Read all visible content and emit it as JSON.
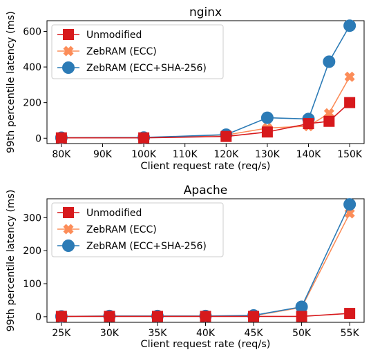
{
  "chart_data": [
    {
      "type": "line",
      "title": "nginx",
      "xlabel": "Client request rate (req/s)",
      "ylabel": "99th percentile latency (ms)",
      "x_ticks": [
        "80K",
        "90K",
        "100K",
        "110K",
        "120K",
        "130K",
        "140K",
        "150K"
      ],
      "x_tick_values": [
        80,
        90,
        100,
        110,
        120,
        130,
        140,
        150
      ],
      "xlim": [
        76.5,
        153.5
      ],
      "y_ticks": [
        0,
        200,
        400,
        600
      ],
      "ylim": [
        -30,
        660
      ],
      "legend_position": "upper-left",
      "series": [
        {
          "name": "Unmodified",
          "color": "#d7191c",
          "marker": "square",
          "points": [
            [
              80,
              2
            ],
            [
              100,
              2
            ],
            [
              120,
              10
            ],
            [
              130,
              35
            ],
            [
              140,
              82
            ],
            [
              145,
              95
            ],
            [
              150,
              200
            ]
          ]
        },
        {
          "name": "ZebRAM (ECC)",
          "color": "#fc8d59",
          "marker": "x",
          "points": [
            [
              80,
              3
            ],
            [
              100,
              3
            ],
            [
              120,
              18
            ],
            [
              130,
              57
            ],
            [
              140,
              68
            ],
            [
              145,
              140
            ],
            [
              150,
              345
            ]
          ]
        },
        {
          "name": "ZebRAM (ECC+SHA-256)",
          "color": "#2c7bb6",
          "marker": "circle",
          "points": [
            [
              80,
              3
            ],
            [
              100,
              4
            ],
            [
              120,
              20
            ],
            [
              130,
              115
            ],
            [
              140,
              108
            ],
            [
              145,
              430
            ],
            [
              150,
              632
            ]
          ]
        }
      ]
    },
    {
      "type": "line",
      "title": "Apache",
      "xlabel": "Client request rate (req/s)",
      "ylabel": "99th percentile latency (ms)",
      "x_ticks": [
        "25K",
        "30K",
        "35K",
        "40K",
        "45K",
        "50K",
        "55K"
      ],
      "x_tick_values": [
        25,
        30,
        35,
        40,
        45,
        50,
        55
      ],
      "xlim": [
        23.5,
        56.5
      ],
      "y_ticks": [
        0,
        100,
        200,
        300
      ],
      "ylim": [
        -17,
        357
      ],
      "legend_position": "upper-left",
      "series": [
        {
          "name": "Unmodified",
          "color": "#d7191c",
          "marker": "square",
          "points": [
            [
              25,
              1
            ],
            [
              30,
              1
            ],
            [
              35,
              1
            ],
            [
              40,
              1
            ],
            [
              45,
              1
            ],
            [
              50,
              1
            ],
            [
              55,
              10
            ]
          ]
        },
        {
          "name": "ZebRAM (ECC)",
          "color": "#fc8d59",
          "marker": "x",
          "points": [
            [
              25,
              1
            ],
            [
              30,
              2
            ],
            [
              35,
              2
            ],
            [
              40,
              2
            ],
            [
              45,
              3
            ],
            [
              50,
              28
            ],
            [
              55,
              313
            ]
          ]
        },
        {
          "name": "ZebRAM (ECC+SHA-256)",
          "color": "#2c7bb6",
          "marker": "circle",
          "points": [
            [
              25,
              1
            ],
            [
              30,
              2
            ],
            [
              35,
              2
            ],
            [
              40,
              2
            ],
            [
              45,
              4
            ],
            [
              50,
              30
            ],
            [
              55,
              340
            ]
          ]
        }
      ]
    }
  ]
}
